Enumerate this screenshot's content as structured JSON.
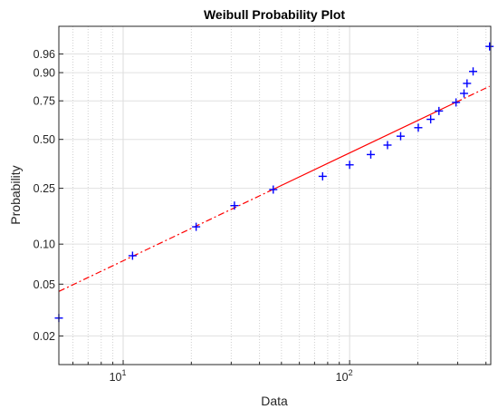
{
  "chart_data": {
    "type": "scatter",
    "title": "Weibull Probability Plot",
    "xlabel": "Data",
    "ylabel": "Probability",
    "x_scale": "log",
    "y_scale": "weibull",
    "xlim": [
      5.2,
      420
    ],
    "ylim": [
      0.012,
      0.995
    ],
    "grid": true,
    "x_ticks": [
      {
        "value": 10,
        "base": "10",
        "exp": "1"
      },
      {
        "value": 100,
        "base": "10",
        "exp": "2"
      }
    ],
    "y_ticks": [
      {
        "value": 0.02,
        "label": "0.02"
      },
      {
        "value": 0.05,
        "label": "0.05"
      },
      {
        "value": 0.1,
        "label": "0.10"
      },
      {
        "value": 0.25,
        "label": "0.25"
      },
      {
        "value": 0.5,
        "label": "0.50"
      },
      {
        "value": 0.75,
        "label": "0.75"
      },
      {
        "value": 0.9,
        "label": "0.90"
      },
      {
        "value": 0.96,
        "label": "0.96"
      }
    ],
    "series": [
      {
        "kind": "points",
        "marker": "+",
        "color": "#0000ff",
        "points": [
          {
            "x": 5.2,
            "y": 0.0275
          },
          {
            "x": 11,
            "y": 0.082
          },
          {
            "x": 21,
            "y": 0.134
          },
          {
            "x": 31,
            "y": 0.19
          },
          {
            "x": 46,
            "y": 0.245
          },
          {
            "x": 76,
            "y": 0.3
          },
          {
            "x": 100,
            "y": 0.355
          },
          {
            "x": 124,
            "y": 0.41
          },
          {
            "x": 147,
            "y": 0.465
          },
          {
            "x": 168,
            "y": 0.52
          },
          {
            "x": 201,
            "y": 0.575
          },
          {
            "x": 228,
            "y": 0.63
          },
          {
            "x": 248,
            "y": 0.685
          },
          {
            "x": 295,
            "y": 0.74
          },
          {
            "x": 320,
            "y": 0.795
          },
          {
            "x": 330,
            "y": 0.85
          },
          {
            "x": 351,
            "y": 0.905
          },
          {
            "x": 415,
            "y": 0.975
          }
        ]
      },
      {
        "kind": "fit-line",
        "color": "#ff0000",
        "solid_from": 46,
        "solid_to": 295,
        "line": [
          {
            "x": 5.2,
            "y": 0.044
          },
          {
            "x": 415,
            "y": 0.835
          }
        ]
      }
    ]
  }
}
